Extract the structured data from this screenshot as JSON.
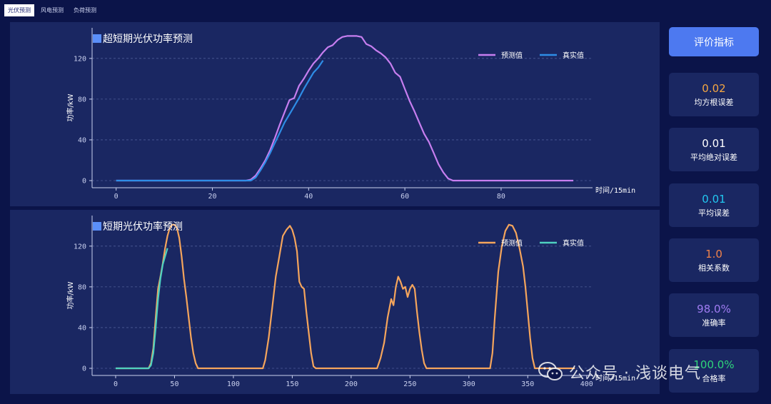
{
  "tabs": [
    {
      "label": "光伏预测"
    },
    {
      "label": "风电预测"
    },
    {
      "label": "负荷预测"
    }
  ],
  "evaluation": {
    "button_label": "评价指标",
    "metrics": [
      {
        "value": "0.02",
        "label": "均方根误差",
        "color": "#f5a742"
      },
      {
        "value": "0.01",
        "label": "平均绝对误差",
        "color": "#ffffff"
      },
      {
        "value": "0.01",
        "label": "平均误差",
        "color": "#22c7f0"
      },
      {
        "value": "1.0",
        "label": "相关系数",
        "color": "#f0824a"
      },
      {
        "value": "98.0%",
        "label": "准确率",
        "color": "#a07cf2"
      },
      {
        "value": "100.0%",
        "label": "合格率",
        "color": "#2ed47a"
      }
    ]
  },
  "watermark": {
    "text": "公众号 · 浅谈电气"
  },
  "chart_data": [
    {
      "type": "line",
      "title": "超短期光伏功率预测",
      "xlabel": "时间/15min",
      "ylabel": "功率/kW",
      "xlim": [
        -5,
        99
      ],
      "ylim": [
        -7,
        150
      ],
      "xticks": [
        0,
        20,
        40,
        60,
        80
      ],
      "yticks": [
        0,
        40,
        80,
        120
      ],
      "grid": true,
      "legend_position": "top-right",
      "series": [
        {
          "name": "预测值",
          "color": "#c77ef0",
          "points": [
            [
              0,
              0
            ],
            [
              27,
              0
            ],
            [
              28,
              1
            ],
            [
              29,
              5
            ],
            [
              30,
              12
            ],
            [
              31,
              20
            ],
            [
              32,
              30
            ],
            [
              33,
              42
            ],
            [
              34,
              55
            ],
            [
              35,
              67
            ],
            [
              36,
              79
            ],
            [
              37,
              81
            ],
            [
              38,
              93
            ],
            [
              39,
              100
            ],
            [
              40,
              108
            ],
            [
              41,
              115
            ],
            [
              42,
              120
            ],
            [
              43,
              126
            ],
            [
              44,
              131
            ],
            [
              45,
              133
            ],
            [
              46,
              138
            ],
            [
              47,
              141
            ],
            [
              48,
              142
            ],
            [
              49,
              142
            ],
            [
              50,
              142
            ],
            [
              51,
              141
            ],
            [
              52,
              134
            ],
            [
              53,
              132
            ],
            [
              54,
              128
            ],
            [
              55,
              125
            ],
            [
              56,
              121
            ],
            [
              57,
              115
            ],
            [
              58,
              106
            ],
            [
              59,
              102
            ],
            [
              60,
              90
            ],
            [
              61,
              78
            ],
            [
              62,
              68
            ],
            [
              63,
              57
            ],
            [
              64,
              46
            ],
            [
              65,
              38
            ],
            [
              66,
              27
            ],
            [
              67,
              16
            ],
            [
              68,
              8
            ],
            [
              69,
              2
            ],
            [
              70,
              0
            ],
            [
              95,
              0
            ]
          ]
        },
        {
          "name": "真实值",
          "color": "#2e8de6",
          "points": [
            [
              0,
              0
            ],
            [
              28,
              0
            ],
            [
              29,
              3
            ],
            [
              30,
              10
            ],
            [
              31,
              18
            ],
            [
              32,
              27
            ],
            [
              33,
              37
            ],
            [
              34,
              47
            ],
            [
              35,
              57
            ],
            [
              36,
              65
            ],
            [
              37,
              73
            ],
            [
              38,
              81
            ],
            [
              39,
              90
            ],
            [
              40,
              98
            ],
            [
              41,
              106
            ],
            [
              42,
              111
            ],
            [
              43,
              118
            ]
          ]
        }
      ]
    },
    {
      "type": "line",
      "title": "短期光伏功率预测",
      "xlabel": "时间/15min",
      "ylabel": "功率/kW",
      "xlim": [
        -20,
        405
      ],
      "ylim": [
        -7,
        150
      ],
      "xticks": [
        0,
        50,
        100,
        150,
        200,
        250,
        300,
        350,
        400
      ],
      "yticks": [
        0,
        40,
        80,
        120
      ],
      "grid": true,
      "legend_position": "top-right",
      "series": [
        {
          "name": "预测值",
          "color": "#f5a55c",
          "points": [
            [
              0,
              0
            ],
            [
              28,
              0
            ],
            [
              30,
              5
            ],
            [
              32,
              20
            ],
            [
              34,
              50
            ],
            [
              36,
              78
            ],
            [
              38,
              90
            ],
            [
              40,
              103
            ],
            [
              42,
              118
            ],
            [
              44,
              130
            ],
            [
              46,
              138
            ],
            [
              48,
              141
            ],
            [
              50,
              141
            ],
            [
              52,
              138
            ],
            [
              54,
              128
            ],
            [
              56,
              110
            ],
            [
              58,
              88
            ],
            [
              60,
              70
            ],
            [
              62,
              50
            ],
            [
              64,
              30
            ],
            [
              66,
              15
            ],
            [
              68,
              5
            ],
            [
              70,
              0
            ],
            [
              125,
              0
            ],
            [
              127,
              8
            ],
            [
              130,
              30
            ],
            [
              133,
              60
            ],
            [
              136,
              90
            ],
            [
              139,
              110
            ],
            [
              142,
              130
            ],
            [
              145,
              136
            ],
            [
              148,
              140
            ],
            [
              150,
              136
            ],
            [
              152,
              128
            ],
            [
              154,
              115
            ],
            [
              156,
              85
            ],
            [
              158,
              80
            ],
            [
              160,
              78
            ],
            [
              162,
              55
            ],
            [
              164,
              35
            ],
            [
              166,
              15
            ],
            [
              168,
              2
            ],
            [
              170,
              0
            ],
            [
              222,
              0
            ],
            [
              225,
              10
            ],
            [
              228,
              25
            ],
            [
              231,
              50
            ],
            [
              234,
              68
            ],
            [
              236,
              62
            ],
            [
              238,
              80
            ],
            [
              240,
              90
            ],
            [
              242,
              85
            ],
            [
              244,
              78
            ],
            [
              246,
              80
            ],
            [
              248,
              70
            ],
            [
              250,
              78
            ],
            [
              252,
              82
            ],
            [
              254,
              78
            ],
            [
              256,
              55
            ],
            [
              258,
              35
            ],
            [
              260,
              18
            ],
            [
              262,
              5
            ],
            [
              264,
              0
            ],
            [
              318,
              0
            ],
            [
              320,
              15
            ],
            [
              322,
              50
            ],
            [
              325,
              95
            ],
            [
              328,
              120
            ],
            [
              331,
              135
            ],
            [
              334,
              141
            ],
            [
              337,
              140
            ],
            [
              340,
              133
            ],
            [
              343,
              118
            ],
            [
              346,
              100
            ],
            [
              348,
              80
            ],
            [
              350,
              55
            ],
            [
              352,
              30
            ],
            [
              354,
              10
            ],
            [
              356,
              0
            ],
            [
              390,
              0
            ]
          ]
        },
        {
          "name": "真实值",
          "color": "#4ed1c0",
          "points": [
            [
              0,
              0
            ],
            [
              28,
              0
            ],
            [
              30,
              3
            ],
            [
              32,
              15
            ],
            [
              34,
              40
            ],
            [
              36,
              68
            ],
            [
              38,
              88
            ],
            [
              40,
              102
            ],
            [
              42,
              110
            ],
            [
              44,
              118
            ]
          ]
        }
      ]
    }
  ]
}
